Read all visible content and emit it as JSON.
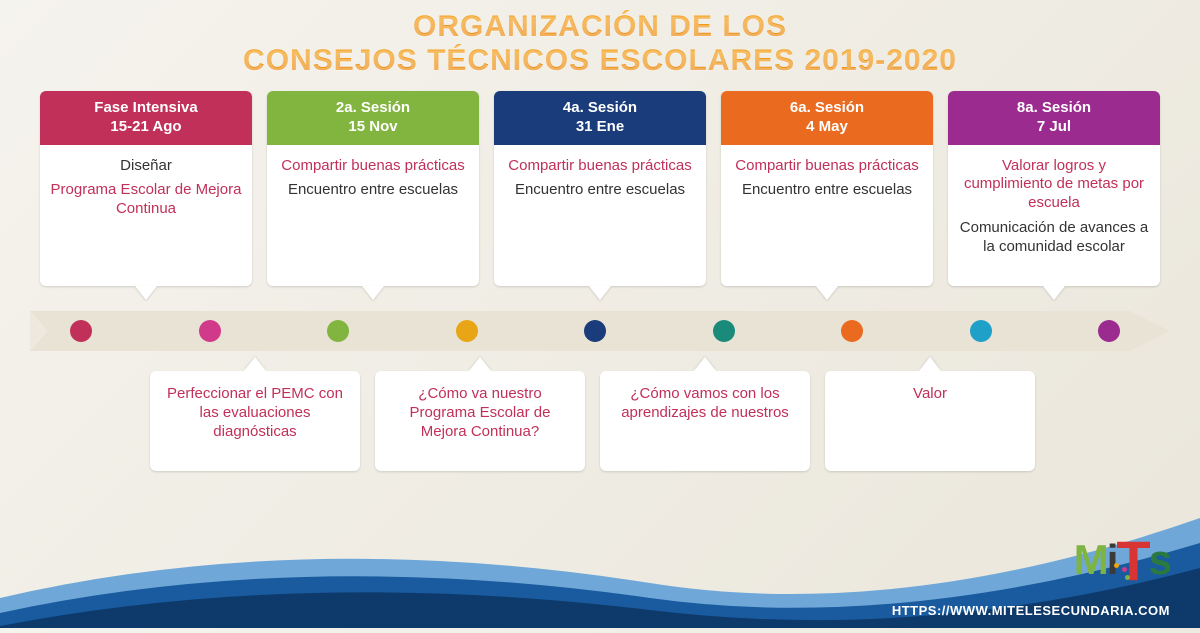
{
  "title_line1": "ORGANIZACIÓN DE LOS",
  "title_line2": "CONSEJOS TÉCNICOS ESCOLARES 2019-2020",
  "title_gradient_top": "#f7a823",
  "title_gradient_bottom": "#e88612",
  "background_top": "#f5f3ed",
  "arrow_color": "#e8e3d4",
  "top_cards": [
    {
      "header_l1": "Fase Intensiva",
      "header_l2": "15-21 Ago",
      "header_color": "#c13059",
      "p1_text": "Diseñar",
      "p1_color": "#333333",
      "p2_text": "Programa Escolar de Mejora Continua",
      "p2_color": "#c13059"
    },
    {
      "header_l1": "2a. Sesión",
      "header_l2": "15 Nov",
      "header_color": "#82b440",
      "p1_text": "Compartir buenas prácticas",
      "p1_color": "#c13059",
      "p2_text": "Encuentro entre escuelas",
      "p2_color": "#333333"
    },
    {
      "header_l1": "4a. Sesión",
      "header_l2": "31 Ene",
      "header_color": "#1a3c7a",
      "p1_text": "Compartir buenas prácticas",
      "p1_color": "#c13059",
      "p2_text": "Encuentro entre escuelas",
      "p2_color": "#333333"
    },
    {
      "header_l1": "6a. Sesión",
      "header_l2": "4 May",
      "header_color": "#ea6a1f",
      "p1_text": "Compartir buenas prácticas",
      "p1_color": "#c13059",
      "p2_text": "Encuentro entre escuelas",
      "p2_color": "#333333"
    },
    {
      "header_l1": "8a. Sesión",
      "header_l2": "7 Jul",
      "header_color": "#9b2b8e",
      "p1_text": "Valorar logros y cumplimiento de metas por escuela",
      "p1_color": "#c13059",
      "p2_text": "Comunicación de avances a la comunidad escolar",
      "p2_color": "#333333"
    }
  ],
  "dots": [
    {
      "color": "#c13059"
    },
    {
      "color": "#d13a8a"
    },
    {
      "color": "#82b440"
    },
    {
      "color": "#e8a617"
    },
    {
      "color": "#1a3c7a"
    },
    {
      "color": "#1a8a7a"
    },
    {
      "color": "#ea6a1f"
    },
    {
      "color": "#1fa0c9"
    },
    {
      "color": "#9b2b8e"
    }
  ],
  "bottom_cards": [
    {
      "text": "Perfeccionar el PEMC con las evaluaciones diagnósticas",
      "color": "#c13059"
    },
    {
      "text": "¿Cómo va nuestro Programa Escolar de Mejora Continua?",
      "color": "#c13059"
    },
    {
      "text": "¿Cómo vamos con los aprendizajes de nuestros",
      "color": "#c13059"
    },
    {
      "text": "Valor",
      "color": "#c13059"
    }
  ],
  "bottom_card_width": 210,
  "url": "HTTPS://WWW.MITELESECUNDARIA.COM",
  "logo": {
    "m": "M",
    "i": "i",
    "t": "T",
    "s": "s",
    "m_color": "#7eb441",
    "i_color": "#3a3a3a",
    "t_color": "#d93434",
    "s_color": "#2a7a3f"
  },
  "wave_dark": "#0d3a6b",
  "wave_mid": "#1a5a9e",
  "wave_light": "#6fa8d8"
}
